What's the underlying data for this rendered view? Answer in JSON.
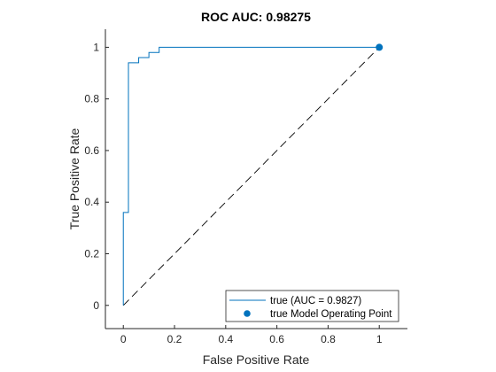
{
  "chart_data": {
    "type": "line",
    "title": "ROC AUC: 0.98275",
    "xlabel": "False Positive Rate",
    "ylabel": "True Positive Rate",
    "xlim": [
      -0.07,
      1.11
    ],
    "ylim": [
      -0.09,
      1.07
    ],
    "xticks": [
      0,
      0.2,
      0.4,
      0.6,
      0.8,
      1
    ],
    "xtick_labels": [
      "0",
      "0.2",
      "0.4",
      "0.6",
      "0.8",
      "1"
    ],
    "yticks": [
      0,
      0.2,
      0.4,
      0.6,
      0.8,
      1
    ],
    "ytick_labels": [
      "0",
      "0.2",
      "0.4",
      "0.6",
      "0.8",
      "1"
    ],
    "grid": false,
    "legend_position": "bottom-right",
    "colors": {
      "roc": "#0072BD",
      "point": "#0072BD",
      "diagonal": "#000000",
      "axis": "#262626"
    },
    "series": [
      {
        "name": "true (AUC = 0.9827)",
        "kind": "step-line",
        "x": [
          0,
          0.0,
          0.02,
          0.02,
          0.02,
          0.06,
          0.06,
          0.1,
          0.1,
          0.14,
          0.14,
          1.0
        ],
        "y": [
          0,
          0.36,
          0.36,
          0.9,
          0.94,
          0.94,
          0.96,
          0.96,
          0.98,
          0.98,
          1.0,
          1.0
        ]
      },
      {
        "name": "true Model Operating Point",
        "kind": "marker",
        "x": [
          1.0
        ],
        "y": [
          1.0
        ]
      }
    ],
    "reference_line": {
      "kind": "dashed",
      "x": [
        0,
        1
      ],
      "y": [
        0,
        1
      ]
    }
  }
}
